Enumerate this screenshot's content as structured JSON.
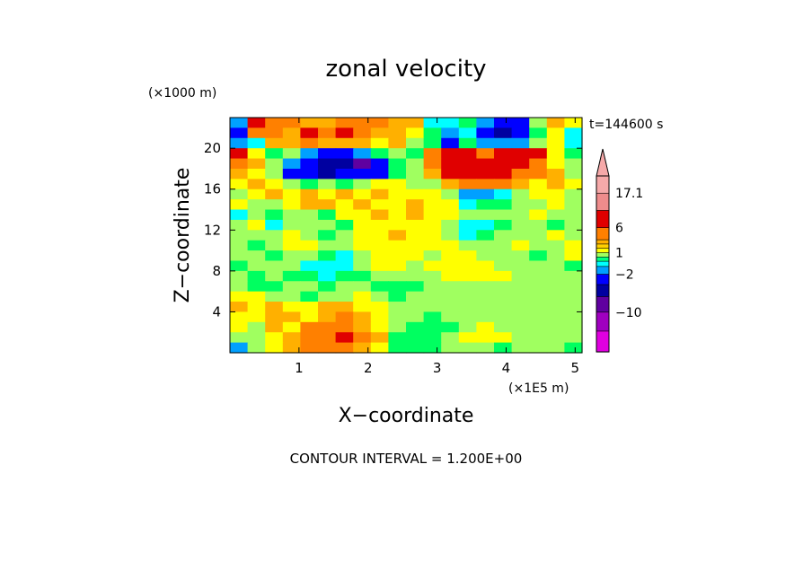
{
  "chart_data": {
    "type": "heatmap",
    "title": "zonal velocity",
    "xlabel": "X−coordinate",
    "ylabel": "Z−coordinate",
    "x_unit": "(×1E5 m)",
    "y_unit": "(×1000 m)",
    "time_label": "t=144600 s",
    "footer": "CONTOUR INTERVAL = 1.200E+00",
    "xlim": [
      0.0,
      5.1
    ],
    "ylim": [
      0.0,
      23.0
    ],
    "x_ticks": [
      1,
      2,
      3,
      4,
      5
    ],
    "y_ticks": [
      4,
      8,
      12,
      16,
      20
    ],
    "colorbar": {
      "labels": [
        "17.1",
        "6",
        "1",
        "−2",
        "−10"
      ],
      "label_values": [
        17.1,
        6,
        1,
        -2,
        -10
      ],
      "colors_top_to_bottom": [
        "#f6a9a9",
        "#ef8c8c",
        "#e00000",
        "#ff8000",
        "#ffb000",
        "#ffd000",
        "#ffff00",
        "#a0ff60",
        "#00ff80",
        "#00ffff",
        "#00a0ff",
        "#0000ff",
        "#0000a0",
        "#6000a0",
        "#a000c0",
        "#e000e0"
      ]
    },
    "field": {
      "rows_top_to_bottom": 23,
      "cols": 20,
      "grid": [
        [
          -2,
          7,
          5,
          4,
          3,
          3,
          4,
          5,
          4,
          3,
          3,
          -1,
          -1,
          0,
          -3,
          -5,
          -4,
          1,
          3,
          2
        ],
        [
          -4,
          5,
          4,
          3,
          6,
          5,
          6,
          4,
          3,
          3,
          2,
          0,
          -3,
          -1,
          -4,
          -6,
          -5,
          0,
          2,
          -1
        ],
        [
          -3,
          -1,
          3,
          3,
          5,
          3,
          3,
          3,
          2,
          3,
          1,
          0,
          -4,
          0,
          -2,
          -3,
          -2,
          1,
          2,
          -1
        ],
        [
          6,
          2,
          0,
          1,
          -3,
          -5,
          -4,
          -2,
          0,
          1,
          0,
          4,
          7,
          6,
          5,
          6,
          7,
          6,
          2,
          0
        ],
        [
          5,
          3,
          1,
          -3,
          -5,
          -6,
          -7,
          -9,
          -5,
          0,
          1,
          4,
          8,
          8,
          8,
          9,
          7,
          5,
          2,
          1
        ],
        [
          3,
          2,
          1,
          -4,
          -5,
          -6,
          -5,
          -5,
          -4,
          0,
          1,
          3,
          6,
          7,
          7,
          6,
          5,
          4,
          3,
          1
        ],
        [
          2,
          3,
          2,
          1,
          0,
          1,
          0,
          1,
          2,
          2,
          1,
          1,
          3,
          4,
          5,
          4,
          3,
          2,
          3,
          2
        ],
        [
          1,
          2,
          3,
          2,
          3,
          2,
          3,
          2,
          3,
          2,
          2,
          2,
          1,
          -2,
          -3,
          -1,
          1,
          2,
          2,
          1
        ],
        [
          2,
          1,
          1,
          2,
          3,
          3,
          2,
          3,
          2,
          2,
          3,
          2,
          2,
          -1,
          0,
          0,
          1,
          1,
          2,
          1
        ],
        [
          -1,
          1,
          0,
          1,
          1,
          0,
          2,
          2,
          3,
          2,
          3,
          2,
          2,
          1,
          1,
          1,
          1,
          2,
          1,
          1
        ],
        [
          1,
          2,
          -1,
          1,
          1,
          1,
          0,
          2,
          2,
          2,
          2,
          2,
          1,
          -1,
          -1,
          0,
          1,
          1,
          0,
          1
        ],
        [
          1,
          1,
          1,
          2,
          1,
          0,
          1,
          2,
          2,
          3,
          2,
          2,
          1,
          -1,
          0,
          1,
          1,
          1,
          2,
          1
        ],
        [
          1,
          0,
          1,
          2,
          2,
          1,
          1,
          2,
          2,
          2,
          2,
          2,
          2,
          1,
          1,
          1,
          2,
          1,
          1,
          2
        ],
        [
          1,
          1,
          0,
          1,
          1,
          0,
          -1,
          1,
          2,
          2,
          2,
          1,
          2,
          2,
          1,
          1,
          1,
          0,
          1,
          2
        ],
        [
          0,
          1,
          1,
          1,
          -1,
          -1,
          -1,
          1,
          2,
          2,
          1,
          2,
          2,
          2,
          2,
          1,
          1,
          1,
          1,
          0
        ],
        [
          1,
          0,
          1,
          0,
          0,
          -1,
          0,
          0,
          1,
          1,
          1,
          1,
          2,
          2,
          2,
          2,
          1,
          1,
          1,
          1
        ],
        [
          1,
          0,
          0,
          1,
          1,
          0,
          1,
          1,
          0,
          0,
          0,
          1,
          1,
          1,
          1,
          1,
          1,
          1,
          1,
          1
        ],
        [
          2,
          2,
          1,
          1,
          0,
          1,
          1,
          2,
          1,
          0,
          1,
          1,
          1,
          1,
          1,
          1,
          1,
          1,
          1,
          1
        ],
        [
          3,
          2,
          3,
          2,
          2,
          3,
          3,
          2,
          2,
          1,
          1,
          1,
          1,
          1,
          1,
          1,
          1,
          1,
          1,
          1
        ],
        [
          2,
          2,
          3,
          3,
          2,
          3,
          4,
          3,
          2,
          1,
          1,
          0,
          1,
          1,
          1,
          1,
          1,
          1,
          1,
          1
        ],
        [
          2,
          1,
          3,
          2,
          4,
          5,
          5,
          3,
          2,
          1,
          0,
          0,
          0,
          1,
          2,
          1,
          1,
          1,
          1,
          1
        ],
        [
          1,
          1,
          2,
          3,
          5,
          5,
          6,
          4,
          3,
          0,
          0,
          0,
          1,
          2,
          2,
          2,
          1,
          1,
          1,
          1
        ],
        [
          -2,
          1,
          2,
          3,
          4,
          5,
          4,
          3,
          2,
          0,
          0,
          0,
          1,
          1,
          1,
          0,
          1,
          1,
          1,
          0
        ]
      ]
    }
  }
}
